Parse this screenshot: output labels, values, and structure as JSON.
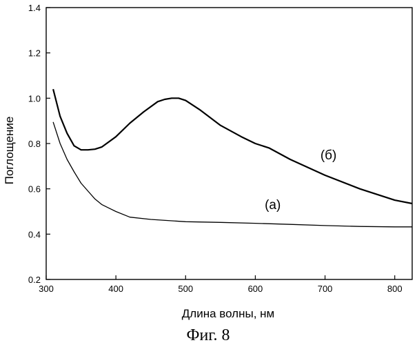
{
  "chart_data": {
    "type": "line",
    "xlabel": "Длина волны, нм",
    "ylabel": "Поглощение",
    "xlim": [
      300,
      825
    ],
    "ylim": [
      0.2,
      1.4
    ],
    "x_ticks": [
      300,
      400,
      500,
      600,
      700,
      800
    ],
    "y_ticks": [
      0.2,
      0.4,
      0.6,
      0.8,
      1.0,
      1.2,
      1.4
    ],
    "y_tick_labels": [
      "0.2",
      "0.4",
      "0.6",
      "0.8",
      "1.0",
      "1.2",
      "1.4"
    ],
    "grid": false,
    "series": [
      {
        "name": "(а)",
        "stroke_width": 1.3,
        "x": [
          310,
          320,
          330,
          340,
          350,
          360,
          370,
          380,
          390,
          400,
          420,
          450,
          500,
          550,
          600,
          650,
          700,
          750,
          800,
          825
        ],
        "y": [
          0.895,
          0.8,
          0.73,
          0.675,
          0.625,
          0.59,
          0.555,
          0.53,
          0.515,
          0.5,
          0.475,
          0.465,
          0.455,
          0.452,
          0.448,
          0.443,
          0.438,
          0.434,
          0.432,
          0.432
        ]
      },
      {
        "name": "(б)",
        "stroke_width": 2.2,
        "x": [
          310,
          320,
          330,
          340,
          350,
          360,
          370,
          380,
          400,
          420,
          440,
          460,
          470,
          480,
          490,
          500,
          520,
          550,
          580,
          600,
          620,
          650,
          700,
          750,
          800,
          825
        ],
        "y": [
          1.04,
          0.92,
          0.845,
          0.79,
          0.772,
          0.772,
          0.775,
          0.785,
          0.83,
          0.89,
          0.94,
          0.985,
          0.995,
          1.0,
          1.0,
          0.99,
          0.95,
          0.88,
          0.83,
          0.8,
          0.78,
          0.73,
          0.66,
          0.6,
          0.55,
          0.535
        ]
      }
    ],
    "annotations": [
      {
        "text": "(а)",
        "x": 625,
        "y": 0.51
      },
      {
        "text": "(б)",
        "x": 705,
        "y": 0.73
      }
    ]
  },
  "caption": "Фиг. 8"
}
